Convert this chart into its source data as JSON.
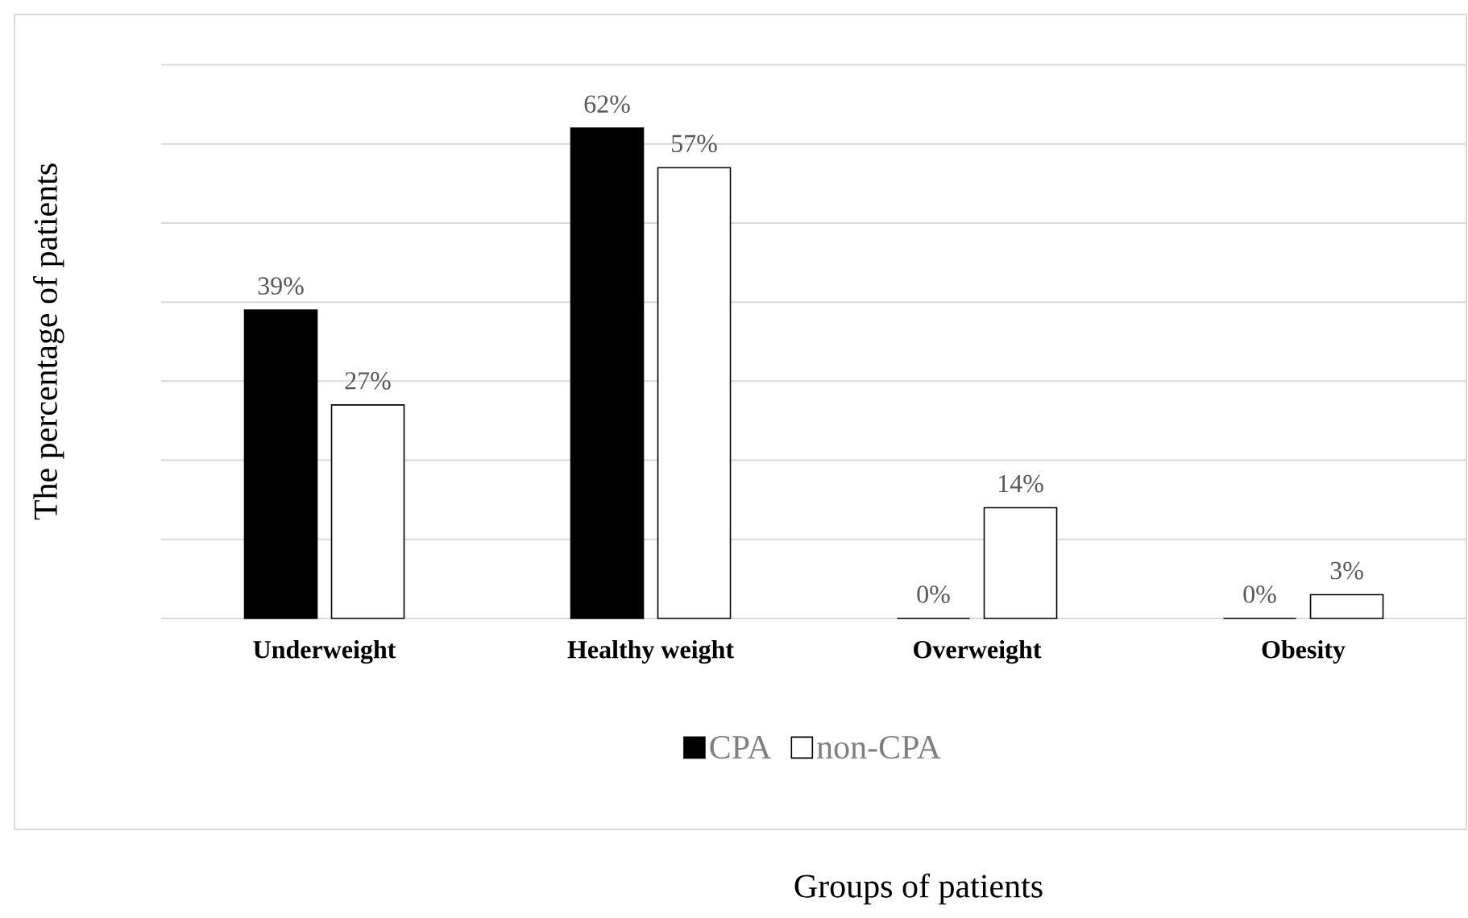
{
  "chart_data": {
    "type": "bar",
    "ylabel": "The percentage of patients",
    "annotations": [
      "Groups of patients"
    ],
    "categories": [
      "Underweight",
      "Healthy weight",
      "Overweight",
      "Obesity"
    ],
    "series": [
      {
        "name": "CPA",
        "color": "#000000",
        "values": [
          39,
          62,
          0,
          0
        ],
        "value_labels": [
          "39%",
          "62%",
          "0%",
          "0%"
        ]
      },
      {
        "name": "non-CPA",
        "color": "#ffffff",
        "values": [
          27,
          57,
          14,
          3
        ],
        "value_labels": [
          "27%",
          "57%",
          "14%",
          "3%"
        ]
      }
    ],
    "grid": "y",
    "legend": "bottom",
    "tick_labels": "x"
  }
}
